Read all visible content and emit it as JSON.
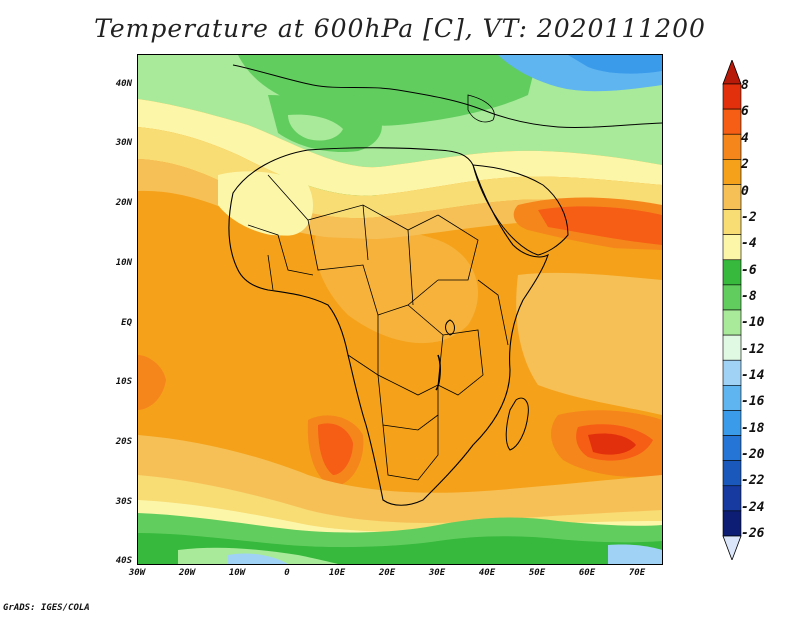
{
  "title": "Temperature at 600hPa [C], VT: 2020111200",
  "credit": "GrADS: IGES/COLA",
  "lat_labels": [
    "40N",
    "30N",
    "20N",
    "10N",
    "EQ",
    "10S",
    "20S",
    "30S",
    "40S"
  ],
  "lon_labels": [
    "30W",
    "20W",
    "10W",
    "0",
    "10E",
    "20E",
    "30E",
    "40E",
    "50E",
    "60E",
    "70E"
  ],
  "colorbar": {
    "labels": [
      "8",
      "6",
      "4",
      "2",
      "0",
      "-2",
      "-4",
      "-6",
      "-8",
      "-10",
      "-12",
      "-14",
      "-16",
      "-18",
      "-20",
      "-22",
      "-24",
      "-26"
    ],
    "colors": [
      "#e2300c",
      "#f65d15",
      "#f5861c",
      "#f5a21a",
      "#f6c057",
      "#f8dc74",
      "#fcf6a8",
      "#36b93c",
      "#62cd5f",
      "#a9ea9a",
      "#e0f9e3",
      "#9fd2f5",
      "#5fb5f0",
      "#3b9beb",
      "#2575d6",
      "#1a58bc",
      "#163aa0",
      "#0c1d73"
    ],
    "over_color": "#b81a09",
    "under_color": "#dbe6fb"
  }
}
